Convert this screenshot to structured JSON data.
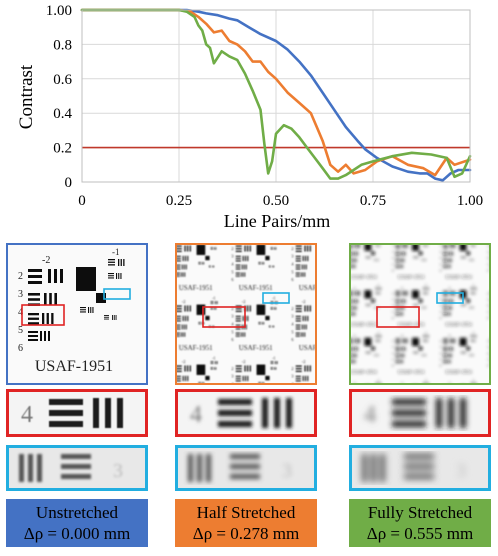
{
  "chart_data": {
    "type": "line",
    "title": "",
    "xlabel": "Line Pairs/mm",
    "ylabel": "Contrast",
    "xlim": [
      0,
      1.0
    ],
    "ylim": [
      0,
      1.0
    ],
    "x_ticks": [
      "0",
      "0.25",
      "0.50",
      "0.75",
      "1.00"
    ],
    "y_ticks": [
      "0",
      "0.2",
      "0.4",
      "0.6",
      "0.8",
      "1.00"
    ],
    "threshold": {
      "value": 0.2,
      "color": "#c0392b"
    },
    "grid": true,
    "series": [
      {
        "color": "#4472c4",
        "x": [
          0,
          0.27,
          0.3,
          0.32,
          0.35,
          0.38,
          0.4,
          0.43,
          0.46,
          0.5,
          0.53,
          0.56,
          0.59,
          0.62,
          0.65,
          0.68,
          0.71,
          0.73,
          0.76,
          0.8,
          0.84,
          0.87,
          0.89,
          0.91,
          0.93,
          0.95,
          0.97,
          1.0
        ],
        "y": [
          1.0,
          1.0,
          0.99,
          0.98,
          0.97,
          0.95,
          0.94,
          0.9,
          0.86,
          0.82,
          0.77,
          0.7,
          0.62,
          0.52,
          0.42,
          0.32,
          0.24,
          0.19,
          0.14,
          0.09,
          0.06,
          0.05,
          0.05,
          0.02,
          0.01,
          0.05,
          0.07,
          0.07
        ]
      },
      {
        "color": "#ed7d31",
        "x": [
          0,
          0.25,
          0.28,
          0.3,
          0.32,
          0.34,
          0.36,
          0.38,
          0.4,
          0.42,
          0.44,
          0.46,
          0.48,
          0.5,
          0.53,
          0.56,
          0.59,
          0.62,
          0.64,
          0.66,
          0.68,
          0.7,
          0.73,
          0.76,
          0.8,
          0.84,
          0.88,
          0.91,
          0.94,
          0.96,
          1.0
        ],
        "y": [
          1.0,
          1.0,
          0.99,
          0.96,
          0.92,
          0.87,
          0.88,
          0.82,
          0.8,
          0.76,
          0.7,
          0.7,
          0.64,
          0.6,
          0.52,
          0.46,
          0.4,
          0.24,
          0.1,
          0.06,
          0.1,
          0.05,
          0.07,
          0.12,
          0.15,
          0.1,
          0.08,
          0.04,
          0.14,
          0.1,
          0.13
        ]
      },
      {
        "color": "#70ad47",
        "x": [
          0,
          0.25,
          0.27,
          0.29,
          0.3,
          0.31,
          0.32,
          0.33,
          0.34,
          0.36,
          0.38,
          0.4,
          0.42,
          0.44,
          0.46,
          0.47,
          0.48,
          0.49,
          0.5,
          0.52,
          0.54,
          0.56,
          0.58,
          0.6,
          0.62,
          0.64,
          0.66,
          0.68,
          0.7,
          0.72,
          0.75,
          0.8,
          0.85,
          0.9,
          0.94,
          0.96,
          0.98,
          1.0
        ],
        "y": [
          1.0,
          1.0,
          0.99,
          0.96,
          0.91,
          0.88,
          0.8,
          0.78,
          0.69,
          0.76,
          0.73,
          0.71,
          0.63,
          0.53,
          0.42,
          0.22,
          0.05,
          0.12,
          0.28,
          0.33,
          0.31,
          0.26,
          0.2,
          0.14,
          0.08,
          0.02,
          0.02,
          0.04,
          0.07,
          0.1,
          0.12,
          0.15,
          0.17,
          0.16,
          0.14,
          0.03,
          0.05,
          0.15
        ]
      }
    ]
  },
  "panels": [
    {
      "color": "#4472c4",
      "text_color": "#000000",
      "label": "Unstretched",
      "delta": "Δρ = 0.000 mm",
      "target_text": "USAF-1951"
    },
    {
      "color": "#ed7d31",
      "text_color": "#000000",
      "label": "Half Stretched",
      "delta": "Δρ = 0.278 mm",
      "target_text": "USAF-1951"
    },
    {
      "color": "#70ad47",
      "text_color": "#000000",
      "label": "Fully Stretched",
      "delta": "Δρ = 0.555 mm",
      "target_text": "USAF-1951"
    }
  ]
}
